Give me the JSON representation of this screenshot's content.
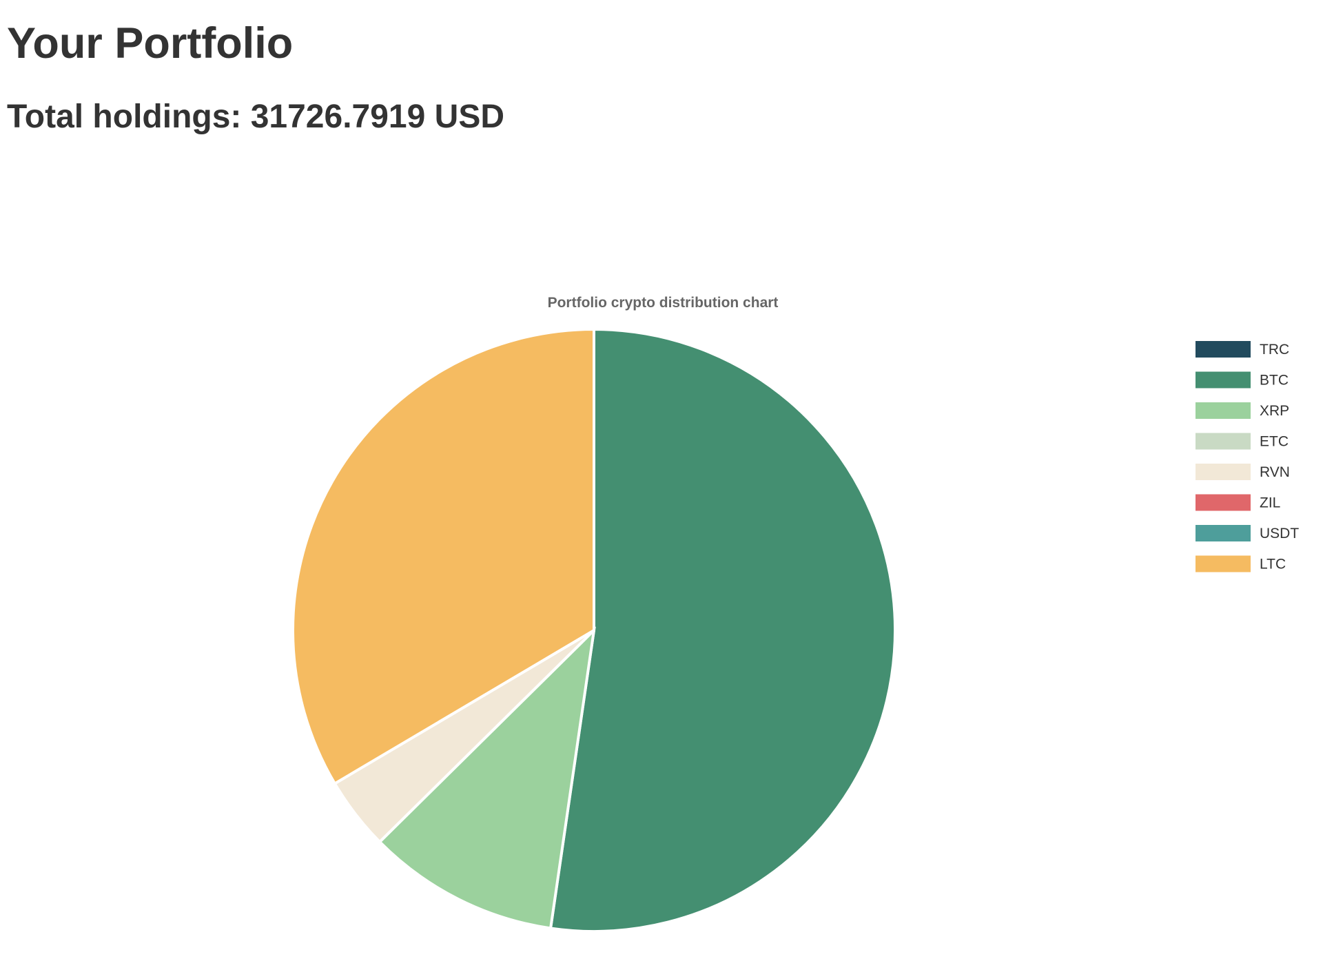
{
  "page": {
    "title": "Your Portfolio",
    "holdings_label": "Total holdings: 31726.7919 USD"
  },
  "chart_data": {
    "type": "pie",
    "title": "Portfolio crypto distribution chart",
    "legend_position": "right",
    "categories": [
      "TRC",
      "BTC",
      "XRP",
      "ETC",
      "RVN",
      "ZIL",
      "USDT",
      "LTC"
    ],
    "values": [
      0.0,
      52.3,
      10.3,
      0.0,
      3.9,
      0.0,
      0.0,
      33.5
    ],
    "colors": [
      "#224b5e",
      "#448f71",
      "#9bd19d",
      "#c9dac4",
      "#f2e8d7",
      "#e0676a",
      "#4e9e9b",
      "#f5bb61"
    ],
    "start_angle_deg": 0,
    "direction": "clockwise"
  }
}
